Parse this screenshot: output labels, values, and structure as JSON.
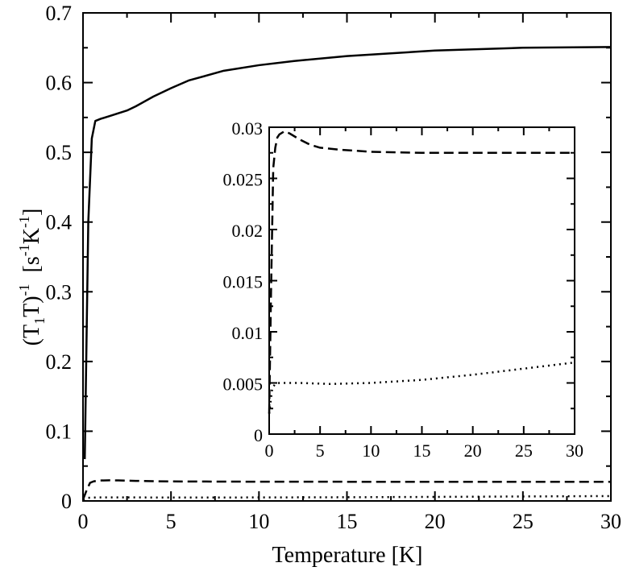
{
  "chart_data": {
    "type": "line",
    "xlabel": "Temperature [K]",
    "ylabel": "(T1T)-1 [s-1K-1]",
    "ylabel_parts": {
      "open": "(T",
      "sub1": "1",
      "mid": "T)",
      "sup1": "-1",
      "bracket_open": "[s",
      "sup2": "-1",
      "k": "K",
      "sup3": "-1",
      "bracket_close": "]"
    },
    "xlim": [
      0,
      30
    ],
    "ylim": [
      0,
      0.7
    ],
    "xticks": [
      "0",
      "5",
      "10",
      "15",
      "20",
      "25",
      "30"
    ],
    "yticks": [
      "0",
      "0.1",
      "0.2",
      "0.3",
      "0.4",
      "0.5",
      "0.6",
      "0.7"
    ],
    "grid": false,
    "series": [
      {
        "style": "solid",
        "x": [
          0.1,
          0.3,
          0.5,
          0.7,
          1,
          1.5,
          2,
          2.5,
          3,
          4,
          5,
          6,
          8,
          10,
          12,
          15,
          20,
          25,
          30
        ],
        "y": [
          0.06,
          0.4,
          0.52,
          0.545,
          0.548,
          0.552,
          0.556,
          0.56,
          0.566,
          0.58,
          0.592,
          0.603,
          0.617,
          0.625,
          0.631,
          0.638,
          0.646,
          0.65,
          0.651
        ]
      },
      {
        "style": "dashed",
        "x": [
          0,
          0.2,
          0.4,
          0.6,
          0.8,
          1,
          1.5,
          2,
          3,
          4,
          5,
          7,
          10,
          15,
          20,
          25,
          30
        ],
        "y": [
          0.002,
          0.015,
          0.026,
          0.028,
          0.029,
          0.0293,
          0.0296,
          0.0294,
          0.0288,
          0.0283,
          0.028,
          0.0278,
          0.0276,
          0.0275,
          0.0275,
          0.0275,
          0.0275
        ]
      },
      {
        "style": "dotted",
        "x": [
          0,
          0.3,
          0.6,
          1,
          3,
          6,
          10,
          15,
          20,
          25,
          30
        ],
        "y": [
          0.002,
          0.0045,
          0.0049,
          0.005,
          0.005,
          0.0049,
          0.005,
          0.0053,
          0.0058,
          0.0064,
          0.007
        ]
      }
    ],
    "inset": {
      "xlim": [
        0,
        30
      ],
      "ylim": [
        0,
        0.03
      ],
      "xticks": [
        "0",
        "5",
        "10",
        "15",
        "20",
        "25",
        "30"
      ],
      "yticks": [
        "0",
        "0.005",
        "0.01",
        "0.015",
        "0.02",
        "0.025",
        "0.03"
      ],
      "series": [
        {
          "style": "dashed",
          "x": [
            0,
            0.2,
            0.4,
            0.6,
            0.8,
            1,
            1.5,
            2,
            3,
            4,
            5,
            7,
            10,
            15,
            20,
            25,
            30
          ],
          "y": [
            0.002,
            0.015,
            0.026,
            0.028,
            0.029,
            0.0293,
            0.0296,
            0.0294,
            0.0288,
            0.0283,
            0.028,
            0.0278,
            0.0276,
            0.0275,
            0.0275,
            0.0275,
            0.0275
          ]
        },
        {
          "style": "dotted",
          "x": [
            0,
            0.3,
            0.6,
            1,
            3,
            6,
            10,
            15,
            20,
            25,
            30
          ],
          "y": [
            0.002,
            0.0045,
            0.0049,
            0.005,
            0.005,
            0.0049,
            0.005,
            0.0053,
            0.0058,
            0.0064,
            0.007
          ]
        }
      ]
    }
  }
}
